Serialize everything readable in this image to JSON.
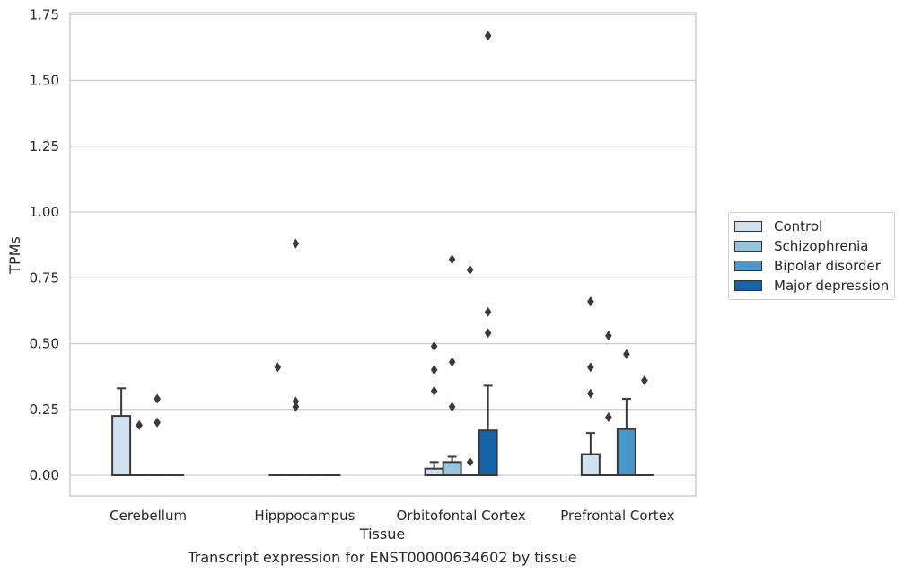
{
  "chart_data": {
    "type": "boxplot",
    "xlabel": "Tissue",
    "ylabel": "TPMs",
    "caption": "Transcript expression for ENST00000634602 by tissue",
    "ylim": [
      -0.08,
      1.76
    ],
    "yticks": [
      "0.00",
      "0.25",
      "0.50",
      "0.75",
      "1.00",
      "1.25",
      "1.50",
      "1.75"
    ],
    "grid": true,
    "legend_position": "right",
    "categories": [
      "Cerebellum",
      "Hipppocampus",
      "Orbitofontal Cortex",
      "Prefrontal Cortex"
    ],
    "series": [
      {
        "name": "Control",
        "color": "#d0e1f2",
        "boxes": [
          {
            "q1": 0,
            "median": 0,
            "q3": 0.225,
            "whisker_low": 0,
            "whisker_high": 0.33,
            "outliers": []
          },
          {
            "q1": 0,
            "median": 0,
            "q3": 0,
            "whisker_low": 0,
            "whisker_high": 0,
            "outliers": [
              0.41
            ]
          },
          {
            "q1": 0,
            "median": 0,
            "q3": 0.025,
            "whisker_low": 0,
            "whisker_high": 0.05,
            "outliers": [
              0.32,
              0.4,
              0.49
            ]
          },
          {
            "q1": 0,
            "median": 0,
            "q3": 0.08,
            "whisker_low": 0,
            "whisker_high": 0.16,
            "outliers": [
              0.31,
              0.41,
              0.66
            ]
          }
        ]
      },
      {
        "name": "Schizophrenia",
        "color": "#94c4df",
        "boxes": [
          {
            "q1": 0,
            "median": 0,
            "q3": 0,
            "whisker_low": 0,
            "whisker_high": 0,
            "outliers": [
              0.19
            ]
          },
          {
            "q1": 0,
            "median": 0,
            "q3": 0,
            "whisker_low": 0,
            "whisker_high": 0,
            "outliers": [
              0.26,
              0.28,
              0.88
            ]
          },
          {
            "q1": 0,
            "median": 0,
            "q3": 0.05,
            "whisker_low": 0,
            "whisker_high": 0.07,
            "outliers": [
              0.26,
              0.43,
              0.82
            ]
          },
          {
            "q1": 0,
            "median": 0,
            "q3": 0,
            "whisker_low": 0,
            "whisker_high": 0,
            "outliers": [
              0.22,
              0.53
            ]
          }
        ]
      },
      {
        "name": "Bipolar disorder",
        "color": "#4a98c9",
        "boxes": [
          {
            "q1": 0,
            "median": 0,
            "q3": 0,
            "whisker_low": 0,
            "whisker_high": 0,
            "outliers": [
              0.2,
              0.29
            ]
          },
          {
            "q1": 0,
            "median": 0,
            "q3": 0,
            "whisker_low": 0,
            "whisker_high": 0,
            "outliers": []
          },
          {
            "q1": 0,
            "median": 0,
            "q3": 0,
            "whisker_low": 0,
            "whisker_high": 0,
            "outliers": [
              0.05,
              0.78
            ]
          },
          {
            "q1": 0,
            "median": 0,
            "q3": 0.175,
            "whisker_low": 0,
            "whisker_high": 0.29,
            "outliers": [
              0.46
            ]
          }
        ]
      },
      {
        "name": "Major depression",
        "color": "#1764ab",
        "boxes": [
          {
            "q1": 0,
            "median": 0,
            "q3": 0,
            "whisker_low": 0,
            "whisker_high": 0,
            "outliers": []
          },
          {
            "q1": 0,
            "median": 0,
            "q3": 0,
            "whisker_low": 0,
            "whisker_high": 0,
            "outliers": []
          },
          {
            "q1": 0,
            "median": 0,
            "q3": 0.17,
            "whisker_low": 0,
            "whisker_high": 0.34,
            "outliers": [
              0.54,
              0.62,
              1.67
            ]
          },
          {
            "q1": 0,
            "median": 0,
            "q3": 0,
            "whisker_low": 0,
            "whisker_high": 0,
            "outliers": [
              0.36
            ]
          }
        ]
      }
    ]
  }
}
